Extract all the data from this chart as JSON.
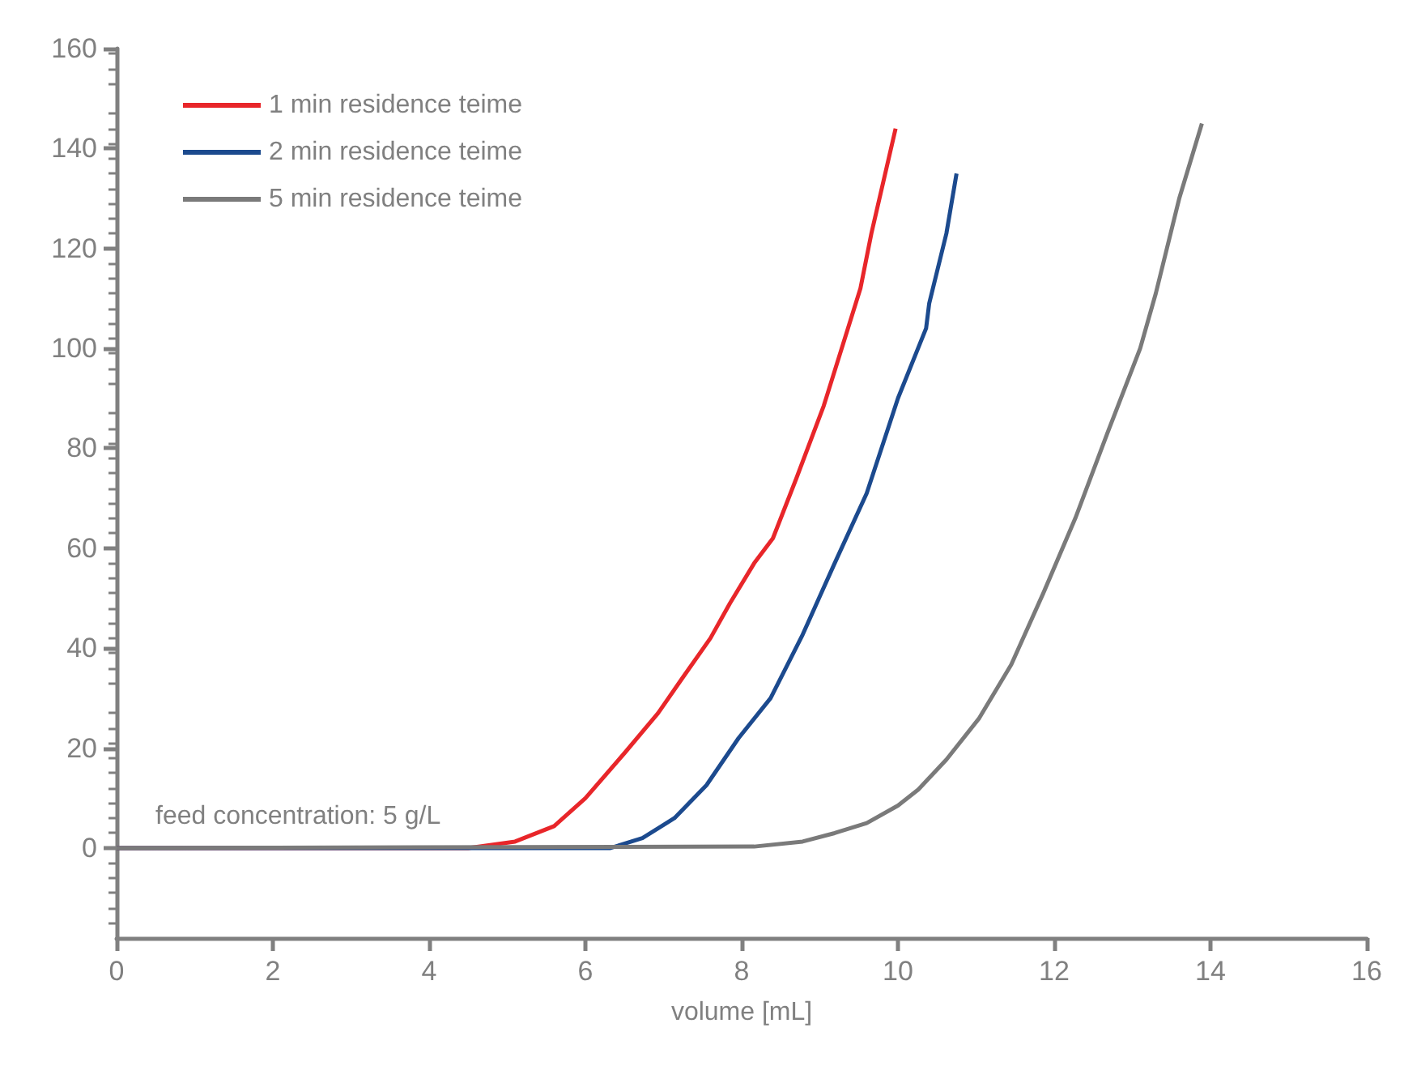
{
  "chart_data": {
    "type": "line",
    "xlabel": "volume [mL]",
    "annotations": [
      "feed concentration: 5 g/L"
    ],
    "xlim": [
      0,
      16
    ],
    "xticks": [
      0,
      2,
      4,
      6,
      8,
      10,
      12,
      14,
      16
    ],
    "ylim": [
      -18,
      160
    ],
    "yticks": [
      0,
      20,
      40,
      60,
      80,
      100,
      120,
      140,
      160
    ],
    "grid": false,
    "legend": "top left",
    "marker": "none",
    "line_style": "solid",
    "series": [
      {
        "name": "1 min residence teime",
        "color": "#e8262a",
        "x": [
          0,
          4.5,
          5.1,
          5.6,
          6.0,
          6.5,
          6.93,
          7.24,
          7.6,
          7.85,
          8.16,
          8.4,
          8.7,
          9.05,
          9.3,
          9.52,
          9.66,
          9.97
        ],
        "values": [
          0,
          0,
          1.3,
          4.4,
          10,
          19,
          27,
          34,
          42,
          49,
          57,
          62,
          74,
          88.5,
          101,
          112,
          123,
          144
        ]
      },
      {
        "name": "2 min residence teime",
        "color": "#1c4a8e",
        "x": [
          0,
          6.32,
          6.73,
          7.14,
          7.55,
          7.96,
          8.37,
          8.78,
          9.19,
          9.6,
          10.0,
          10.36,
          10.4,
          10.62,
          10.75
        ],
        "values": [
          0,
          0,
          2,
          6,
          12.6,
          22,
          30,
          42.7,
          57,
          71,
          90,
          104,
          109,
          123,
          135
        ]
      },
      {
        "name": "5 min residence teime",
        "color": "#7a7a7a",
        "x": [
          0,
          8.16,
          8.78,
          9.19,
          9.6,
          10.0,
          10.26,
          10.62,
          11.04,
          11.45,
          11.86,
          12.27,
          12.68,
          13.1,
          13.3,
          13.6,
          13.89
        ],
        "values": [
          0,
          0.3,
          1.3,
          3,
          5,
          8.5,
          11.7,
          17.7,
          26,
          36.7,
          51,
          66,
          83,
          100,
          111,
          130,
          145
        ]
      }
    ]
  }
}
